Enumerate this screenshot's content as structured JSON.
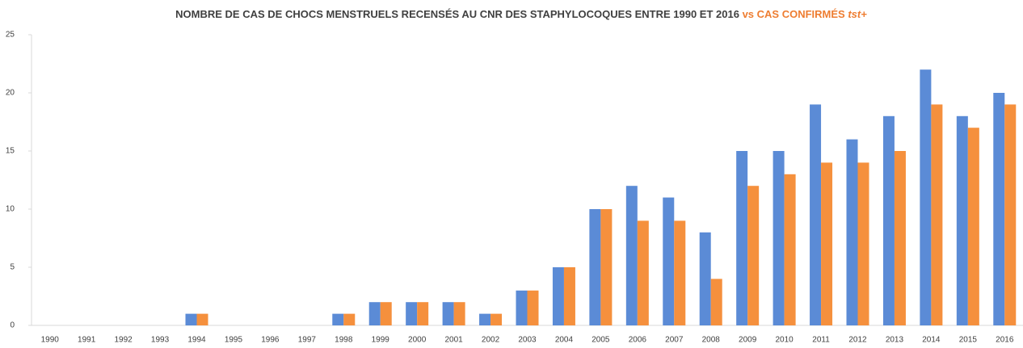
{
  "chart_data": {
    "type": "bar",
    "title": [
      "NOMBRE DE CAS DE CHOCS MENSTRUELS RECENSÉS AU CNR DES STAPHYLOCOQUES ENTRE 1990 ET 2016",
      "vs CAS CONFIRMÉS",
      "tst+"
    ],
    "title_colors": [
      "#404040",
      "#ee7d31",
      "#ee7d31"
    ],
    "categories": [
      "1990",
      "1991",
      "1992",
      "1993",
      "1994",
      "1995",
      "1996",
      "1997",
      "1998",
      "1999",
      "2000",
      "2001",
      "2002",
      "2003",
      "2004",
      "2005",
      "2006",
      "2007",
      "2008",
      "2009",
      "2010",
      "2011",
      "2012",
      "2013",
      "2014",
      "2015",
      "2016"
    ],
    "series": [
      {
        "color": "#5b8bd6",
        "values": [
          0,
          0,
          0,
          0,
          1,
          0,
          0,
          0,
          1,
          2,
          2,
          2,
          1,
          3,
          5,
          10,
          12,
          11,
          8,
          15,
          15,
          19,
          16,
          18,
          22,
          18,
          20
        ]
      },
      {
        "color": "#f5903d",
        "values": [
          0,
          0,
          0,
          0,
          1,
          0,
          0,
          0,
          1,
          2,
          2,
          2,
          1,
          3,
          5,
          10,
          9,
          9,
          4,
          12,
          13,
          14,
          14,
          15,
          19,
          17,
          19
        ]
      }
    ],
    "ylim": [
      0,
      25
    ],
    "yticks": [
      0,
      5,
      10,
      15,
      20,
      25
    ],
    "grid": false
  }
}
